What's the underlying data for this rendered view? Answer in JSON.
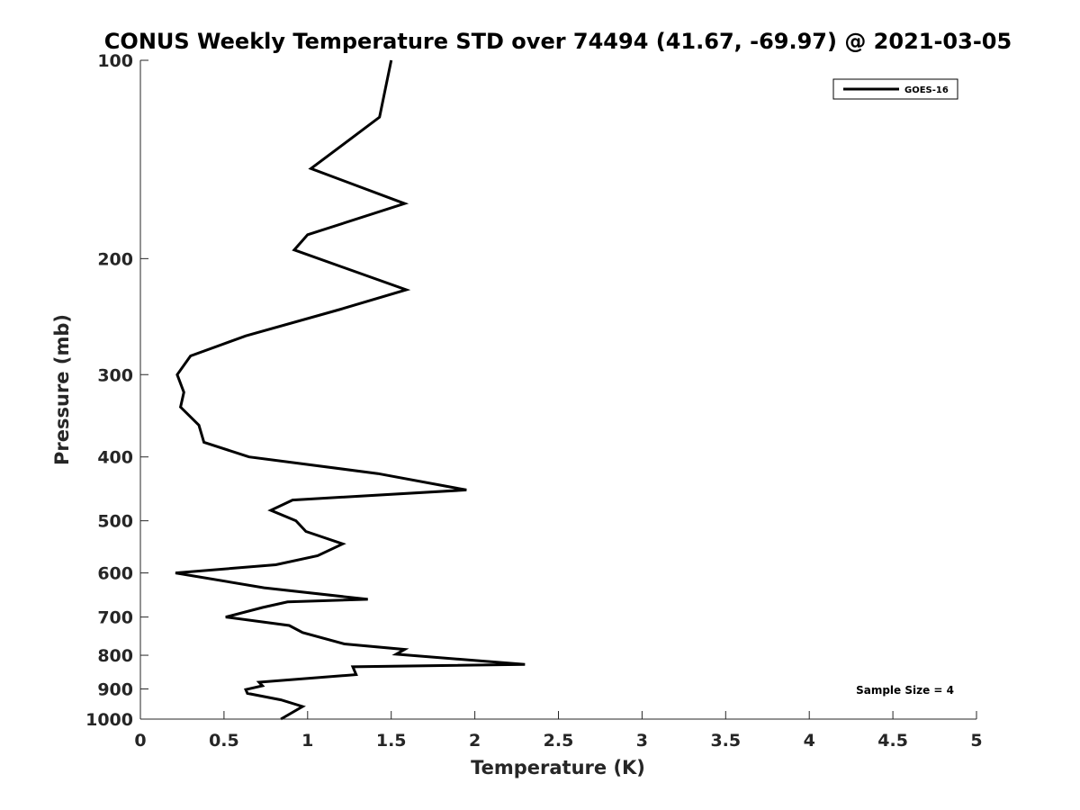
{
  "chart_data": {
    "type": "line",
    "title": "CONUS Weekly Temperature STD over 74494 (41.67, -69.97) @ 2021-03-05",
    "xlabel": "Temperature (K)",
    "ylabel": "Pressure (mb)",
    "xlim": [
      0,
      5
    ],
    "ylim": [
      100,
      1000
    ],
    "yscale": "log",
    "y_reversed": true,
    "x_ticks": [
      0,
      0.5,
      1,
      1.5,
      2,
      2.5,
      3,
      3.5,
      4,
      4.5,
      5
    ],
    "x_tick_labels": [
      "0",
      "0.5",
      "1",
      "1.5",
      "2",
      "2.5",
      "3",
      "3.5",
      "4",
      "4.5",
      "5"
    ],
    "y_ticks": [
      100,
      200,
      300,
      400,
      500,
      600,
      700,
      800,
      900,
      1000
    ],
    "y_tick_labels": [
      "100",
      "200",
      "300",
      "400",
      "500",
      "600",
      "700",
      "800",
      "900",
      "1000"
    ],
    "grid": false,
    "legend_position": "top-right",
    "annotation": "Sample Size = 4",
    "series": [
      {
        "name": "GOES-16",
        "color": "#000000",
        "x": [
          1.5,
          1.43,
          1.02,
          1.58,
          1.0,
          0.92,
          1.59,
          1.19,
          0.63,
          0.3,
          0.22,
          0.26,
          0.24,
          0.35,
          0.38,
          0.65,
          1.42,
          1.95,
          0.91,
          0.78,
          0.93,
          0.99,
          1.21,
          1.06,
          0.81,
          0.21,
          0.74,
          1.36,
          0.88,
          0.73,
          0.51,
          0.89,
          0.97,
          1.22,
          1.58,
          1.53,
          2.3,
          1.27,
          1.29,
          0.71,
          0.73,
          0.63,
          0.64,
          0.84,
          0.97,
          0.84
        ],
        "y": [
          100,
          122,
          146,
          165,
          184,
          194,
          223,
          239,
          262,
          281,
          300,
          319,
          336,
          358,
          380,
          400,
          424,
          449,
          465,
          482,
          500,
          519,
          542,
          565,
          583,
          600,
          632,
          658,
          664,
          677,
          700,
          721,
          739,
          769,
          784,
          797,
          826,
          833,
          856,
          879,
          890,
          902,
          914,
          935,
          957,
          1000
        ]
      }
    ]
  }
}
